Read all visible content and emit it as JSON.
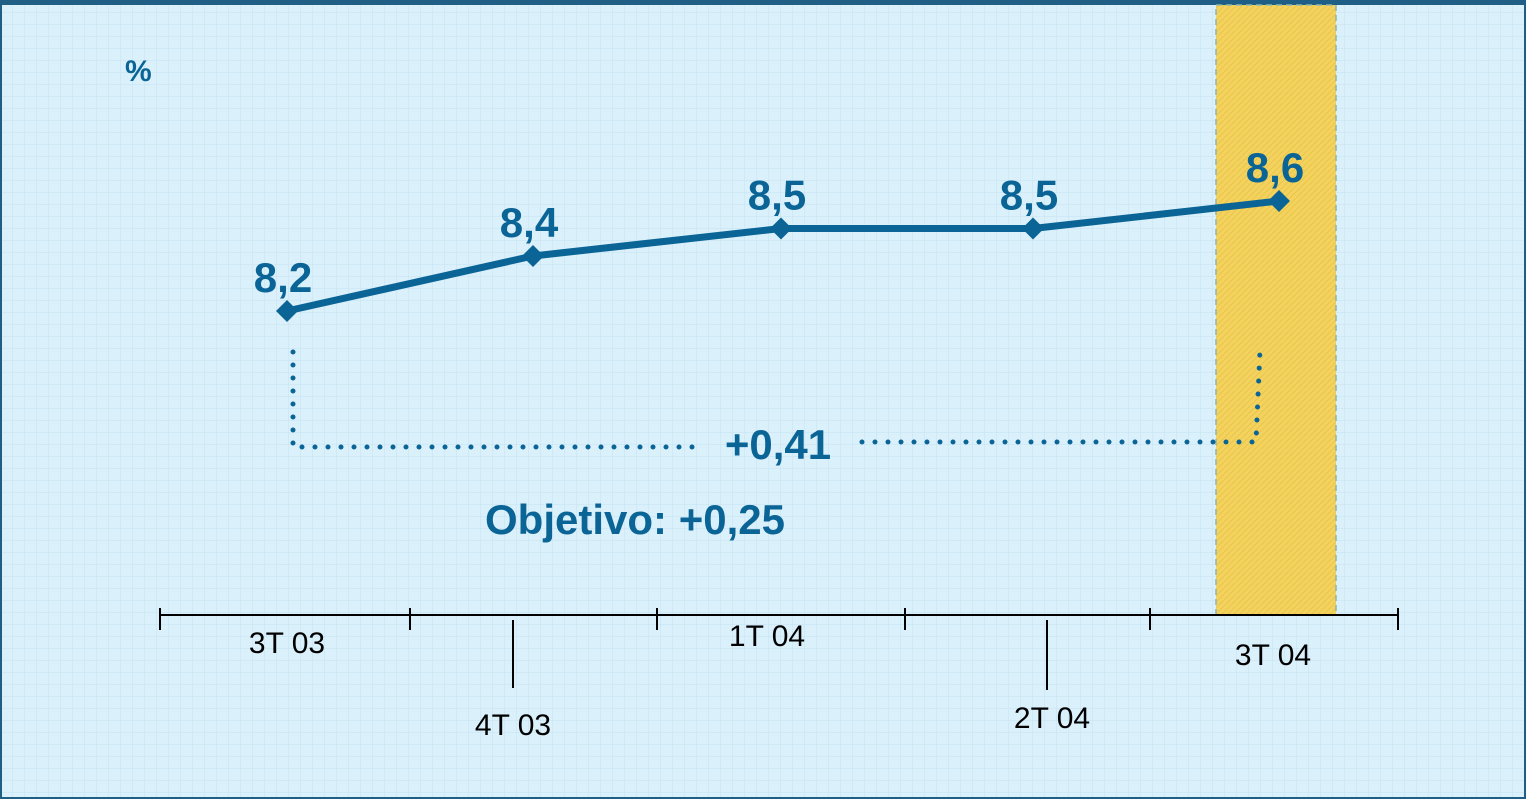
{
  "chart_data": {
    "type": "line",
    "unit_label": "%",
    "categories": [
      "3T 03",
      "4T 03",
      "1T 04",
      "2T 04",
      "3T 04"
    ],
    "values": [
      8.2,
      8.4,
      8.5,
      8.5,
      8.6
    ],
    "value_labels": [
      "8,2",
      "8,4",
      "8,5",
      "8,5",
      "8,6"
    ],
    "color": "#0a6496",
    "annotations": [
      "+0,41",
      "Objetivo: +0,25"
    ]
  }
}
